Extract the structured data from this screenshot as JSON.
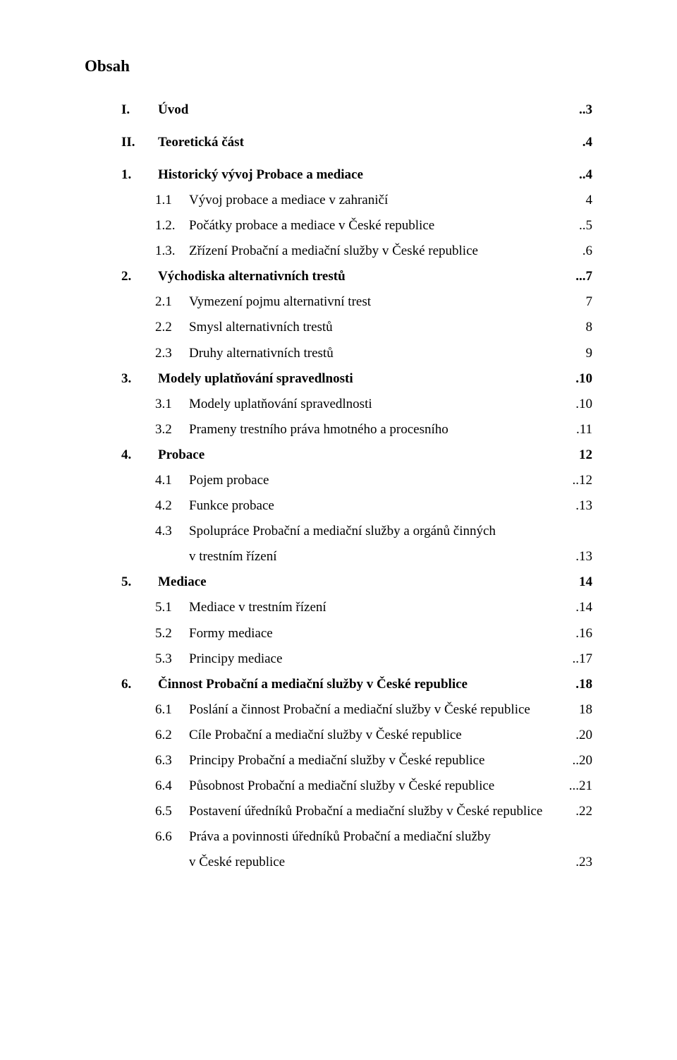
{
  "title": "Obsah",
  "entries": [
    {
      "level": 0,
      "num": "I.",
      "text": "Úvod",
      "page": "..3",
      "bold": true
    },
    {
      "gap": true
    },
    {
      "level": 0,
      "num": "II.",
      "text": "Teoretická část",
      "page": ".4",
      "bold": true
    },
    {
      "gap": true
    },
    {
      "level": 0,
      "num": "1.",
      "text": "Historický vývoj Probace a mediace",
      "page": "..4",
      "bold": true
    },
    {
      "level": 1,
      "num": "1.1",
      "text": "Vývoj probace a mediace v zahraničí",
      "page": "4"
    },
    {
      "level": 1,
      "num": "1.2.",
      "text": "Počátky probace a mediace v České republice",
      "page": "..5"
    },
    {
      "level": 1,
      "num": "1.3.",
      "text": "Zřízení Probační a mediační služby v České republice",
      "page": ".6"
    },
    {
      "level": 0,
      "num": "2.",
      "text": "Východiska alternativních trestů",
      "page": "...7",
      "bold": true
    },
    {
      "level": 1,
      "num": "2.1",
      "text": "Vymezení pojmu alternativní trest",
      "page": "7"
    },
    {
      "level": 1,
      "num": "2.2",
      "text": "Smysl alternativních trestů",
      "page": "8"
    },
    {
      "level": 1,
      "num": "2.3",
      "text": "Druhy alternativních trestů",
      "page": "9"
    },
    {
      "level": 0,
      "num": "3.",
      "text": "Modely uplatňování spravedlnosti",
      "page": ".10",
      "bold": true
    },
    {
      "level": 1,
      "num": "3.1",
      "text": "Modely uplatňování spravedlnosti",
      "page": ".10"
    },
    {
      "level": 1,
      "num": "3.2",
      "text": "Prameny trestního práva hmotného a procesního",
      "page": ".11"
    },
    {
      "level": 0,
      "num": "4.",
      "text": "Probace",
      "page": "12",
      "bold": true
    },
    {
      "level": 1,
      "num": "4.1",
      "text": "Pojem probace",
      "page": "..12"
    },
    {
      "level": 1,
      "num": "4.2",
      "text": "Funkce probace",
      "page": ".13"
    },
    {
      "level": 1,
      "num": "4.3",
      "text": "Spolupráce  Probační a mediační služby a orgánů činných",
      "noleader": true
    },
    {
      "cont": true,
      "text": "v trestním řízení",
      "page": ".13"
    },
    {
      "level": 0,
      "num": "5.",
      "text": "Mediace",
      "page": "14",
      "bold": true
    },
    {
      "level": 1,
      "num": "5.1",
      "text": "Mediace v trestním řízení",
      "page": ".14"
    },
    {
      "level": 1,
      "num": "5.2",
      "text": "Formy mediace",
      "page": ".16"
    },
    {
      "level": 1,
      "num": "5.3",
      "text": "Principy mediace",
      "page": "..17"
    },
    {
      "level": 0,
      "num": "6.",
      "text": "Činnost Probační a mediační služby v České republice",
      "page": ".18",
      "bold": true
    },
    {
      "level": 1,
      "num": "6.1",
      "text": "Poslání a činnost Probační a mediační služby v České republice",
      "page": "18"
    },
    {
      "level": 1,
      "num": "6.2",
      "text": "Cíle Probační a mediační služby v České republice",
      "page": ".20"
    },
    {
      "level": 1,
      "num": "6.3",
      "text": "Principy Probační a mediační služby v České republice",
      "page": "..20"
    },
    {
      "level": 1,
      "num": "6.4",
      "text": "Působnost Probační a mediační služby v České republice",
      "page": "...21"
    },
    {
      "level": 1,
      "num": "6.5",
      "text": "Postavení úředníků Probační a mediační služby v České republice",
      "page": ".22"
    },
    {
      "level": 1,
      "num": "6.6",
      "text": "Práva a povinnosti úředníků Probační a mediační služby",
      "noleader": true
    },
    {
      "cont": true,
      "text": "v České republice",
      "page": ".23"
    }
  ]
}
